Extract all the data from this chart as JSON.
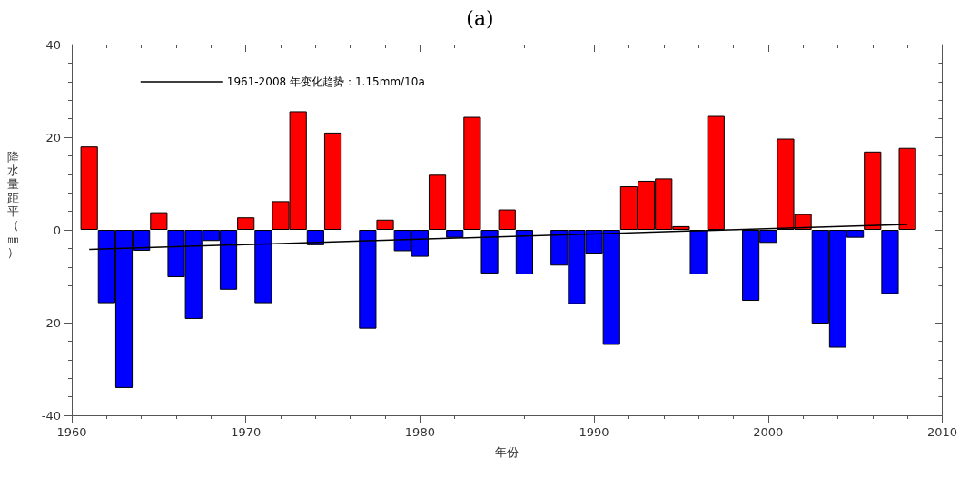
{
  "chart_data": {
    "type": "bar",
    "title": "(a)",
    "xlabel": "年份",
    "ylabel": "降水量距平（㎜）",
    "x": [
      1961,
      1962,
      1963,
      1964,
      1965,
      1966,
      1967,
      1968,
      1969,
      1970,
      1971,
      1972,
      1973,
      1974,
      1975,
      1976,
      1977,
      1978,
      1979,
      1980,
      1981,
      1982,
      1983,
      1984,
      1985,
      1986,
      1987,
      1988,
      1989,
      1990,
      1991,
      1992,
      1993,
      1994,
      1995,
      1996,
      1997,
      1998,
      1999,
      2000,
      2001,
      2002,
      2003,
      2004,
      2005,
      2006,
      2007,
      2008
    ],
    "series": [
      {
        "values": [
          18.0,
          -15.8,
          -34.1,
          -4.5,
          3.8,
          -10.2,
          -19.2,
          -2.4,
          -12.9,
          2.7,
          -15.8,
          6.2,
          25.6,
          -3.3,
          21.0,
          null,
          -21.3,
          2.2,
          -4.6,
          -5.8,
          11.9,
          -1.7,
          24.4,
          -9.4,
          4.4,
          -9.6,
          null,
          -7.7,
          -16.0,
          -5.1,
          -24.8,
          9.4,
          10.6,
          11.1,
          0.8,
          -9.6,
          24.6,
          null,
          -15.3,
          -2.8,
          19.7,
          3.4,
          -20.2,
          -25.4,
          -1.7,
          16.9,
          -13.8,
          17.7
        ],
        "colors": [
          "#ff0000",
          "#0000ff",
          "#0000ff",
          "#0000ff",
          "#ff0000",
          "#0000ff",
          "#0000ff",
          "#0000ff",
          "#0000ff",
          "#ff0000",
          "#0000ff",
          "#ff0000",
          "#ff0000",
          "#0000ff",
          "#ff0000",
          "#ff0000",
          "#0000ff",
          "#ff0000",
          "#0000ff",
          "#0000ff",
          "#ff0000",
          "#0000ff",
          "#ff0000",
          "#0000ff",
          "#ff0000",
          "#0000ff",
          "#ff0000",
          "#0000ff",
          "#0000ff",
          "#0000ff",
          "#0000ff",
          "#ff0000",
          "#ff0000",
          "#ff0000",
          "#ff0000",
          "#0000ff",
          "#ff0000",
          "#ff0000",
          "#0000ff",
          "#0000ff",
          "#ff0000",
          "#ff0000",
          "#0000ff",
          "#0000ff",
          "#0000ff",
          "#ff0000",
          "#0000ff",
          "#ff0000"
        ]
      },
      {
        "type": "line",
        "name": "1961-2008 年变化趋势：1.15mm/10a",
        "color": "#000000",
        "x": [
          1961,
          2008
        ],
        "values": [
          -4.2,
          1.2
        ]
      }
    ],
    "xlim": [
      1960,
      2010
    ],
    "xticks": [
      1960,
      1970,
      1980,
      1990,
      2000,
      2010
    ],
    "ylim": [
      -40,
      40
    ],
    "yticks": [
      -40,
      -20,
      0,
      20,
      40
    ],
    "grid": false,
    "legend": "top left",
    "marker": "none",
    "line_style": "solid"
  }
}
